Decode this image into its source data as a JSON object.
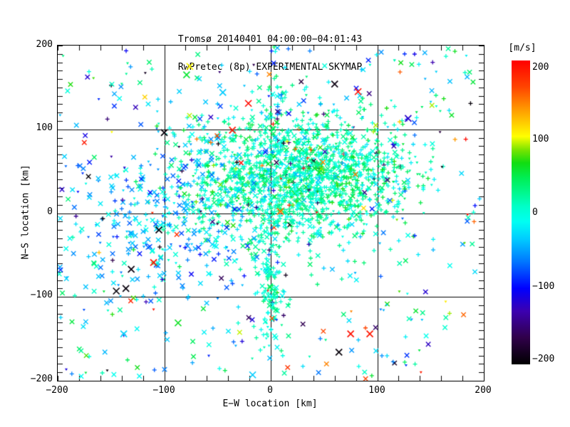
{
  "title_line1": "Tromsø 20140401 04:00:00−04:01:43",
  "title_line2": "RwPretec (8p) EXPERIMENTAL SKYMAP",
  "chart_data": {
    "type": "scatter",
    "title": "Tromsø 20140401 04:00:00−04:01:43 / RwPretec (8p) EXPERIMENTAL SKYMAP",
    "xlabel": "E−W location [km]",
    "ylabel": "N−S location [km]",
    "xlim": [
      -200,
      200
    ],
    "ylim": [
      -200,
      200
    ],
    "grid": "on",
    "grid_lines_km": [
      -100,
      0,
      100
    ],
    "minor_tick_step_km": {
      "x": 20,
      "y": 10
    },
    "x_tick_labels": [
      "−200",
      "−100",
      "0",
      "100",
      "200"
    ],
    "y_tick_labels": [
      "200",
      "100",
      "0",
      "−100",
      "−200"
    ],
    "colorbar": {
      "label": "[m/s]",
      "tick_labels": [
        "200",
        "100",
        "0",
        "−100",
        "−200"
      ],
      "min": -200,
      "max": 200,
      "stops": [
        {
          "v": -200,
          "c": "#000000"
        },
        {
          "v": -165,
          "c": "#30004a"
        },
        {
          "v": -130,
          "c": "#3c00b0"
        },
        {
          "v": -100,
          "c": "#0000ff"
        },
        {
          "v": -65,
          "c": "#0077ff"
        },
        {
          "v": -35,
          "c": "#00ccff"
        },
        {
          "v": -12,
          "c": "#00fff2"
        },
        {
          "v": 8,
          "c": "#00ffc8"
        },
        {
          "v": 25,
          "c": "#00f890"
        },
        {
          "v": 45,
          "c": "#00ee55"
        },
        {
          "v": 65,
          "c": "#11dd11"
        },
        {
          "v": 82,
          "c": "#77e400"
        },
        {
          "v": 100,
          "c": "#ffff00"
        },
        {
          "v": 130,
          "c": "#ffaa00"
        },
        {
          "v": 165,
          "c": "#ff4400"
        },
        {
          "v": 200,
          "c": "#ff0000"
        }
      ]
    },
    "points_spec": {
      "seed": 20140401,
      "comment": "Echo cloud ~2650 points, velocity-colored; dense green core NE of origin, cyan × arm to the SW, green band along meridian, sparse mixed background.",
      "clusters": [
        {
          "n": 1350,
          "cx": 18,
          "cy": 38,
          "sx": 54,
          "sy": 40,
          "vmean": 14,
          "vsd": 24,
          "out": 0.025,
          "mix": {
            "plus": 0.7,
            "tri": 0.17,
            "cross": 0.13
          }
        },
        {
          "n": 380,
          "cx": 55,
          "cy": 52,
          "sx": 42,
          "sy": 30,
          "vmean": 20,
          "vsd": 26,
          "out": 0.02,
          "mix": {
            "plus": 0.72,
            "tri": 0.18,
            "cross": 0.1
          }
        },
        {
          "n": 300,
          "cx": -100,
          "cy": -12,
          "sx": 52,
          "sy": 50,
          "vmean": -42,
          "vsd": 26,
          "out": 0.03,
          "mix": {
            "cross": 0.52,
            "plus": 0.28,
            "tri": 0.2
          }
        },
        {
          "n": 135,
          "cx": 0,
          "cy": -90,
          "sx": 7,
          "sy": 45,
          "vmean": 10,
          "vsd": 20,
          "out": 0.04,
          "mix": {
            "plus": 0.5,
            "cross": 0.32,
            "tri": 0.18
          }
        },
        {
          "n": 55,
          "cx": 2,
          "cy": 120,
          "sx": 7,
          "sy": 42,
          "vmean": 5,
          "vsd": 35,
          "out": 0.06,
          "mix": {
            "plus": 0.45,
            "cross": 0.35,
            "tri": 0.2
          }
        },
        {
          "n": 430,
          "uniform": true,
          "vmean": -15,
          "vsd": 55,
          "out": 0.07,
          "mix": {
            "cross": 0.44,
            "plus": 0.34,
            "tri": 0.22
          }
        }
      ],
      "notable_points": [
        {
          "x": -36,
          "y": 99,
          "v": 190,
          "m": "cross"
        },
        {
          "x": -21,
          "y": 131,
          "v": 195,
          "m": "cross"
        },
        {
          "x": -76,
          "y": 175,
          "v": 102,
          "m": "cross"
        },
        {
          "x": -79,
          "y": 165,
          "v": 55,
          "m": "cross"
        },
        {
          "x": -45,
          "y": 144,
          "v": -35,
          "m": "cross"
        },
        {
          "x": 82,
          "y": 145,
          "v": 192,
          "m": "cross"
        },
        {
          "x": -100,
          "y": 96,
          "v": -195,
          "m": "cross"
        },
        {
          "x": 60,
          "y": 154,
          "v": -192,
          "m": "cross"
        },
        {
          "x": 152,
          "y": 180,
          "v": -130,
          "m": "plus"
        },
        {
          "x": 129,
          "y": 113,
          "v": -120,
          "m": "cross"
        },
        {
          "x": 173,
          "y": 88,
          "v": 135,
          "m": "plus"
        },
        {
          "x": -105,
          "y": -20,
          "v": -195,
          "m": "cross"
        },
        {
          "x": -110,
          "y": -59,
          "v": 190,
          "m": "cross"
        },
        {
          "x": -131,
          "y": -67,
          "v": -193,
          "m": "cross"
        },
        {
          "x": -145,
          "y": -93,
          "v": -196,
          "m": "cross"
        },
        {
          "x": -136,
          "y": -90,
          "v": -194,
          "m": "cross"
        },
        {
          "x": -138,
          "y": -144,
          "v": -30,
          "m": "cross"
        },
        {
          "x": -87,
          "y": -131,
          "v": 60,
          "m": "cross"
        },
        {
          "x": -110,
          "y": -115,
          "v": 190,
          "m": "tri"
        },
        {
          "x": 75,
          "y": -144,
          "v": 192,
          "m": "cross"
        },
        {
          "x": 93,
          "y": -144,
          "v": 188,
          "m": "cross"
        },
        {
          "x": 64,
          "y": -166,
          "v": -195,
          "m": "cross"
        },
        {
          "x": -17,
          "y": -193,
          "v": -35,
          "m": "cross"
        },
        {
          "x": 141,
          "y": -190,
          "v": 185,
          "m": "tri"
        },
        {
          "x": 9,
          "y": 2,
          "v": 150,
          "m": "cross"
        }
      ]
    }
  }
}
